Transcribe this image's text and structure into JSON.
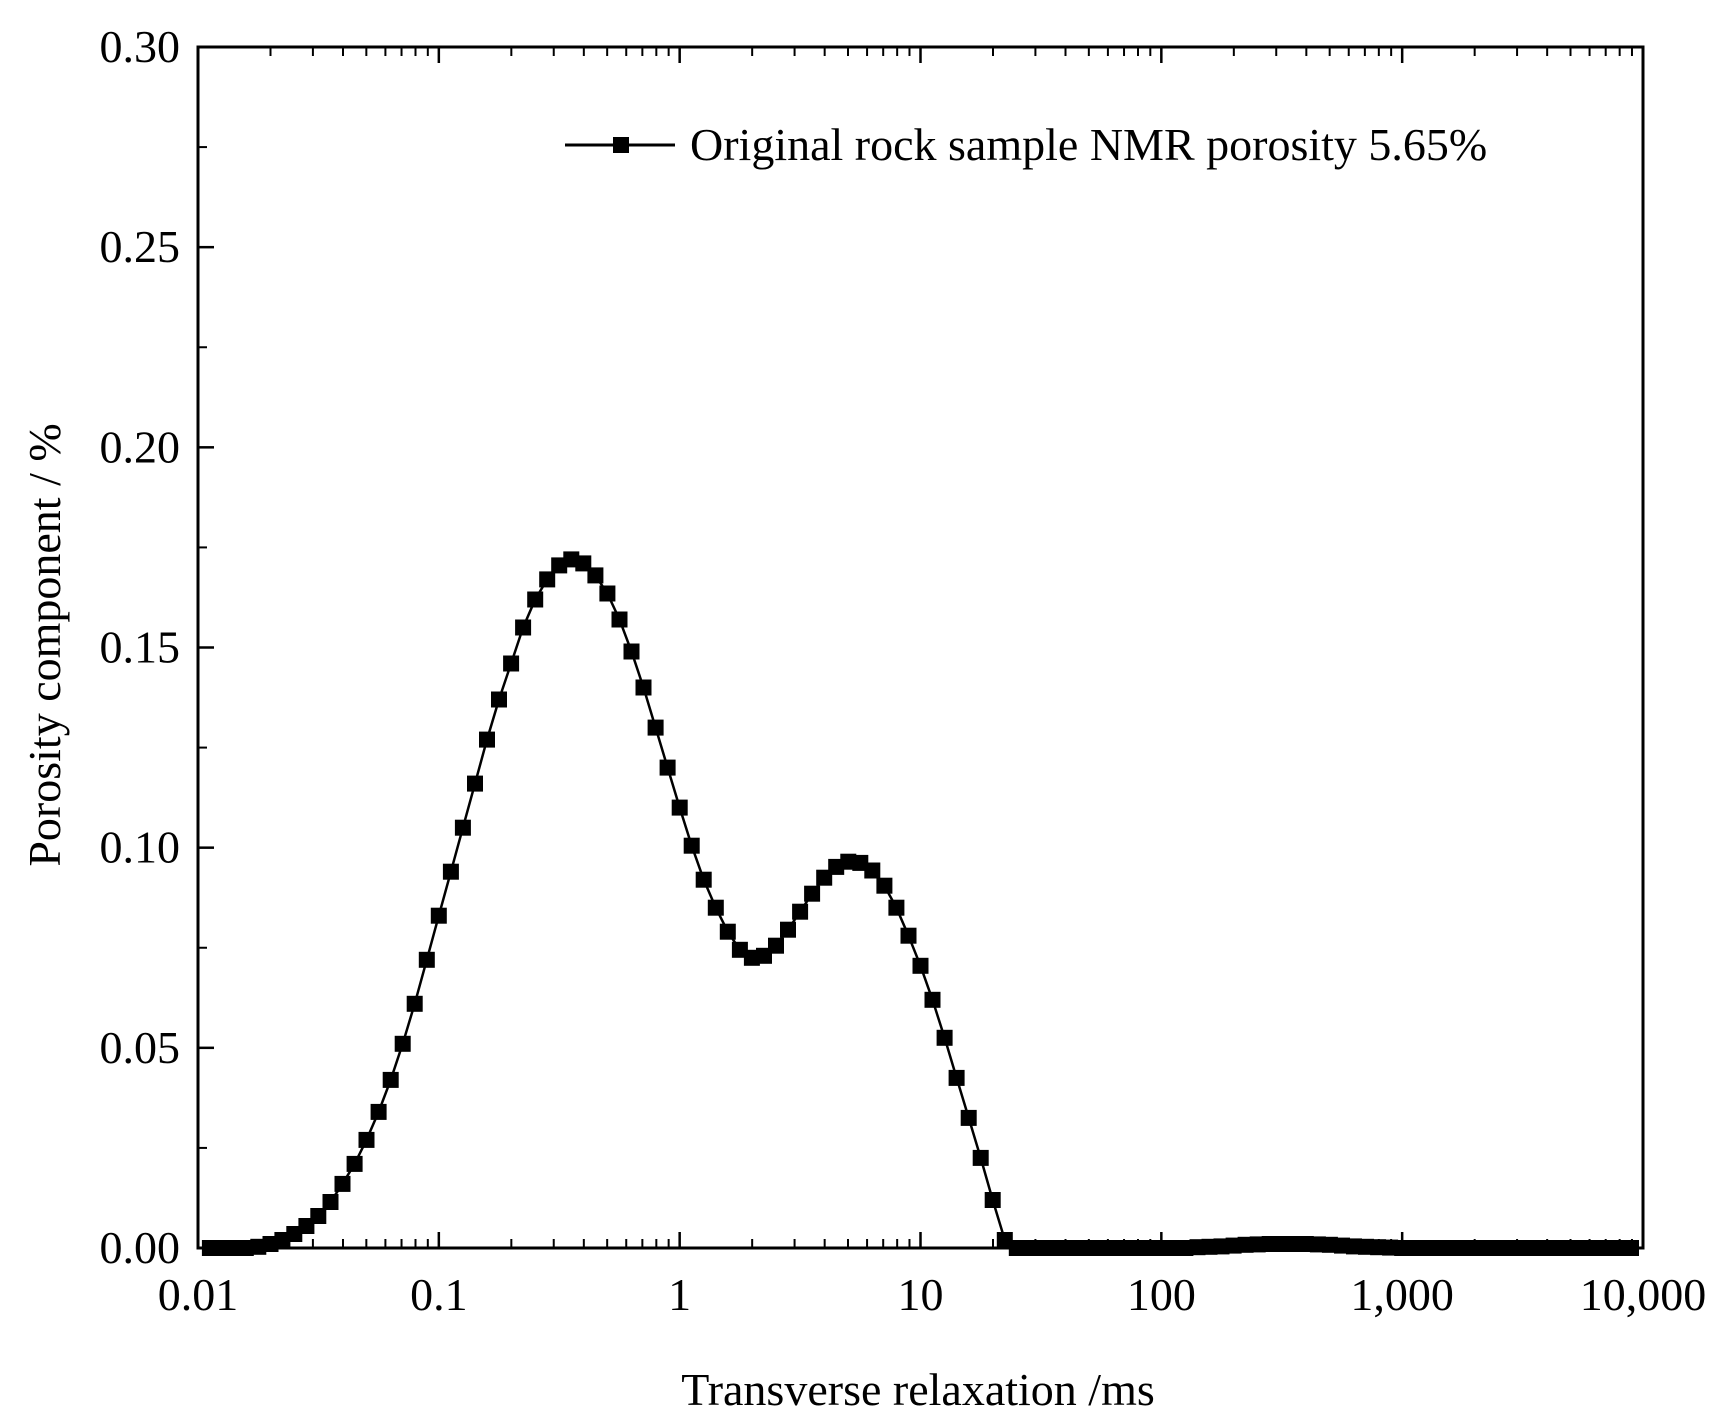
{
  "chart_data": {
    "type": "line",
    "title": "",
    "xlabel": "Transverse relaxation /ms",
    "ylabel": "Porosity component / %",
    "xscale": "log",
    "xlim": [
      0.01,
      10000
    ],
    "ylim": [
      0,
      0.3
    ],
    "xticks": [
      {
        "value": 0.01,
        "label": "0.01"
      },
      {
        "value": 0.1,
        "label": "0.1"
      },
      {
        "value": 1,
        "label": "1"
      },
      {
        "value": 10,
        "label": "10"
      },
      {
        "value": 100,
        "label": "100"
      },
      {
        "value": 1000,
        "label": "1,000"
      },
      {
        "value": 10000,
        "label": "10,000"
      }
    ],
    "yticks": [
      {
        "value": 0.0,
        "label": "0.00"
      },
      {
        "value": 0.05,
        "label": "0.05"
      },
      {
        "value": 0.1,
        "label": "0.10"
      },
      {
        "value": 0.15,
        "label": "0.15"
      },
      {
        "value": 0.2,
        "label": "0.20"
      },
      {
        "value": 0.25,
        "label": "0.25"
      },
      {
        "value": 0.3,
        "label": "0.30"
      }
    ],
    "legend_position": "top-right",
    "grid": false,
    "colors": {
      "line": "#000000",
      "marker": "#000000",
      "axis": "#000000"
    },
    "series": [
      {
        "name": "Original rock sample NMR porosity 5.65%",
        "marker": "square",
        "points": [
          [
            0.0112,
            0.0
          ],
          [
            0.0126,
            0.0
          ],
          [
            0.0141,
            0.0
          ],
          [
            0.0158,
            0.0
          ],
          [
            0.0178,
            0.0003
          ],
          [
            0.02,
            0.001
          ],
          [
            0.0224,
            0.002
          ],
          [
            0.0251,
            0.0035
          ],
          [
            0.0282,
            0.0055
          ],
          [
            0.0316,
            0.008
          ],
          [
            0.0355,
            0.0115
          ],
          [
            0.0398,
            0.016
          ],
          [
            0.0447,
            0.021
          ],
          [
            0.0501,
            0.027
          ],
          [
            0.0562,
            0.034
          ],
          [
            0.0631,
            0.042
          ],
          [
            0.0708,
            0.051
          ],
          [
            0.0794,
            0.061
          ],
          [
            0.0891,
            0.072
          ],
          [
            0.1,
            0.083
          ],
          [
            0.1122,
            0.094
          ],
          [
            0.1259,
            0.105
          ],
          [
            0.1413,
            0.116
          ],
          [
            0.1585,
            0.127
          ],
          [
            0.1778,
            0.137
          ],
          [
            0.1995,
            0.146
          ],
          [
            0.2239,
            0.155
          ],
          [
            0.2512,
            0.162
          ],
          [
            0.2818,
            0.167
          ],
          [
            0.3162,
            0.1705
          ],
          [
            0.3548,
            0.172
          ],
          [
            0.3981,
            0.171
          ],
          [
            0.4467,
            0.168
          ],
          [
            0.5012,
            0.1635
          ],
          [
            0.5623,
            0.157
          ],
          [
            0.631,
            0.149
          ],
          [
            0.7079,
            0.14
          ],
          [
            0.7943,
            0.13
          ],
          [
            0.8913,
            0.12
          ],
          [
            1.0,
            0.11
          ],
          [
            1.122,
            0.1005
          ],
          [
            1.2589,
            0.092
          ],
          [
            1.4125,
            0.085
          ],
          [
            1.5849,
            0.079
          ],
          [
            1.7783,
            0.0745
          ],
          [
            1.9953,
            0.0725
          ],
          [
            2.2387,
            0.073
          ],
          [
            2.5119,
            0.0755
          ],
          [
            2.8184,
            0.0795
          ],
          [
            3.1623,
            0.084
          ],
          [
            3.5481,
            0.0885
          ],
          [
            3.9811,
            0.0925
          ],
          [
            4.4668,
            0.0952
          ],
          [
            5.0119,
            0.0965
          ],
          [
            5.6234,
            0.0962
          ],
          [
            6.3096,
            0.0943
          ],
          [
            7.0795,
            0.0905
          ],
          [
            7.9433,
            0.085
          ],
          [
            8.9125,
            0.078
          ],
          [
            10.0,
            0.0705
          ],
          [
            11.2202,
            0.062
          ],
          [
            12.5893,
            0.0525
          ],
          [
            14.1254,
            0.0425
          ],
          [
            15.8489,
            0.0325
          ],
          [
            17.7828,
            0.0225
          ],
          [
            19.9526,
            0.012
          ],
          [
            22.3872,
            0.002
          ],
          [
            25.1189,
            0.0
          ],
          [
            28.1838,
            0.0
          ],
          [
            31.6228,
            0.0
          ],
          [
            35.4813,
            0.0
          ],
          [
            39.8107,
            0.0
          ],
          [
            44.6684,
            0.0
          ],
          [
            50.1187,
            0.0
          ],
          [
            56.2341,
            0.0
          ],
          [
            63.0957,
            0.0
          ],
          [
            70.7946,
            0.0
          ],
          [
            79.4328,
            0.0
          ],
          [
            89.1251,
            0.0
          ],
          [
            100.0,
            0.0
          ],
          [
            112.2018,
            0.0
          ],
          [
            125.8925,
            0.0
          ],
          [
            141.2538,
            0.0002
          ],
          [
            158.4893,
            0.0003
          ],
          [
            177.8279,
            0.0004
          ],
          [
            199.5262,
            0.0006
          ],
          [
            223.8721,
            0.0008
          ],
          [
            251.1886,
            0.0009
          ],
          [
            281.8383,
            0.001
          ],
          [
            316.2278,
            0.001
          ],
          [
            354.8134,
            0.001
          ],
          [
            398.1072,
            0.001
          ],
          [
            446.6836,
            0.0009
          ],
          [
            501.1872,
            0.0008
          ],
          [
            562.3413,
            0.0006
          ],
          [
            630.9573,
            0.0004
          ],
          [
            707.9458,
            0.0003
          ],
          [
            794.3282,
            0.0002
          ],
          [
            891.2509,
            0.0001
          ],
          [
            1000.0,
            0.0
          ],
          [
            1122.0185,
            0.0
          ],
          [
            1258.9254,
            0.0
          ],
          [
            1412.5375,
            0.0
          ],
          [
            1584.8932,
            0.0
          ],
          [
            1778.2794,
            0.0
          ],
          [
            1995.2623,
            0.0
          ],
          [
            2238.7211,
            0.0
          ],
          [
            2511.8864,
            0.0
          ],
          [
            2818.3829,
            0.0
          ],
          [
            3162.2777,
            0.0
          ],
          [
            3548.1339,
            0.0
          ],
          [
            3981.0717,
            0.0
          ],
          [
            4466.8359,
            0.0
          ],
          [
            5011.8723,
            0.0
          ],
          [
            5623.4133,
            0.0
          ],
          [
            6309.5734,
            0.0
          ],
          [
            7079.4578,
            0.0
          ],
          [
            7943.2823,
            0.0
          ],
          [
            8912.5094,
            0.0
          ]
        ]
      }
    ]
  }
}
